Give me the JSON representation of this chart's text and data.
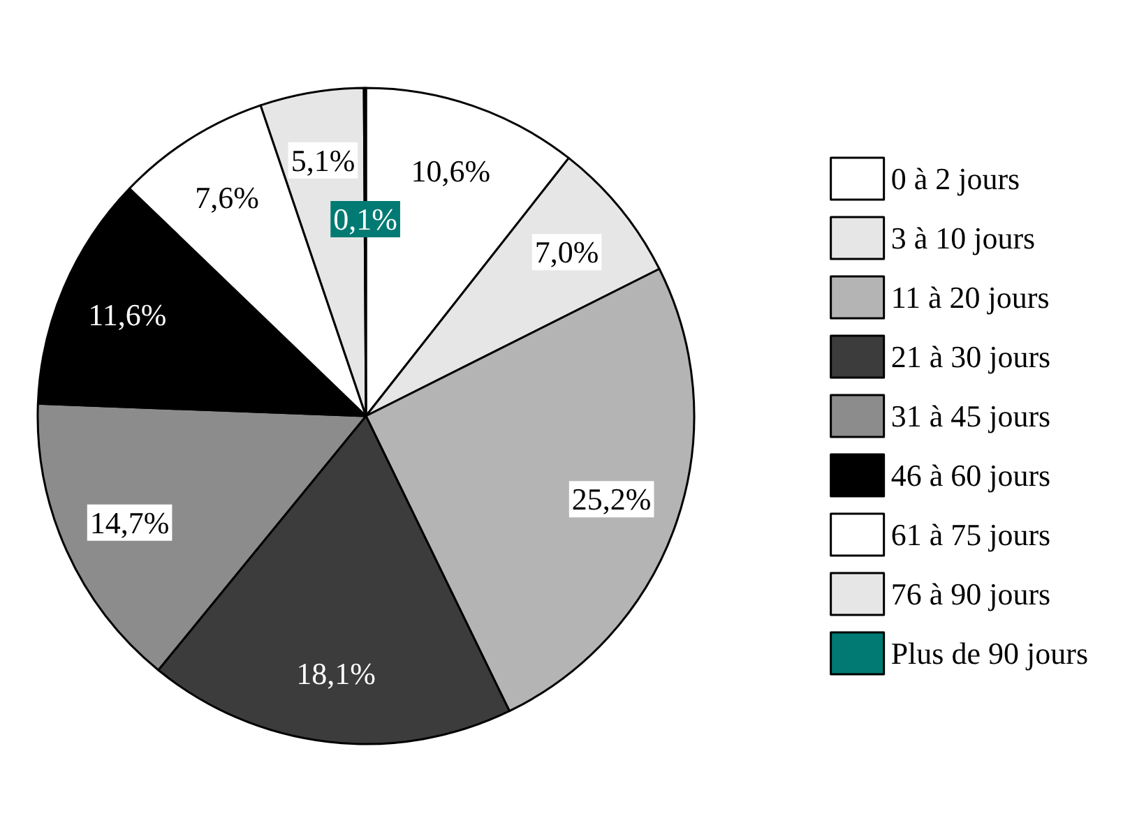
{
  "chart_data": {
    "type": "pie",
    "categories": [
      "0 à 2 jours",
      "3 à 10 jours",
      "11 à 20 jours",
      "21 à 30 jours",
      "31 à 45 jours",
      "46 à 60 jours",
      "61 à 75 jours",
      "76 à 90 jours",
      "Plus de 90 jours"
    ],
    "values": [
      10.6,
      7.0,
      25.2,
      18.1,
      14.7,
      11.6,
      7.6,
      5.1,
      0.1
    ],
    "value_labels": [
      "10,6%",
      "7,0%",
      "25,2%",
      "18,1%",
      "14,7%",
      "11,6%",
      "7,6%",
      "5,1%",
      "0,1%"
    ],
    "colors": [
      "#ffffff",
      "#e6e6e6",
      "#b4b4b4",
      "#3c3c3c",
      "#8c8c8c",
      "#000000",
      "#ffffff",
      "#e6e6e6",
      "#007a73"
    ],
    "legend": "right"
  }
}
